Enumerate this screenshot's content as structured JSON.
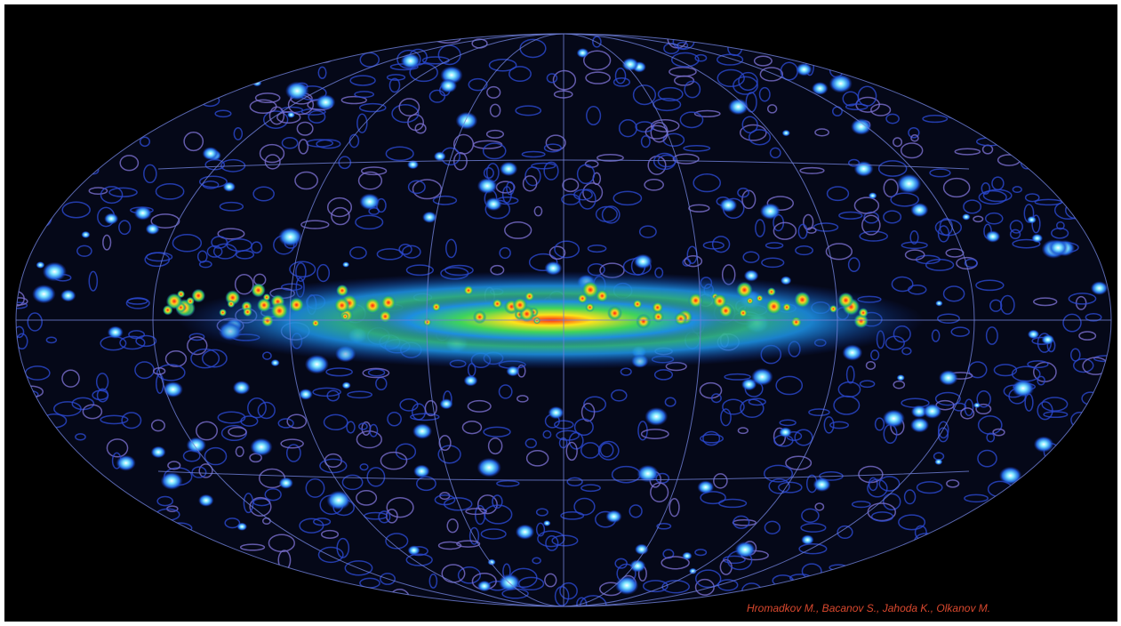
{
  "map": {
    "credit": "Hromadkov M., Bacanov S., Jahoda K., Olkanov M."
  }
}
